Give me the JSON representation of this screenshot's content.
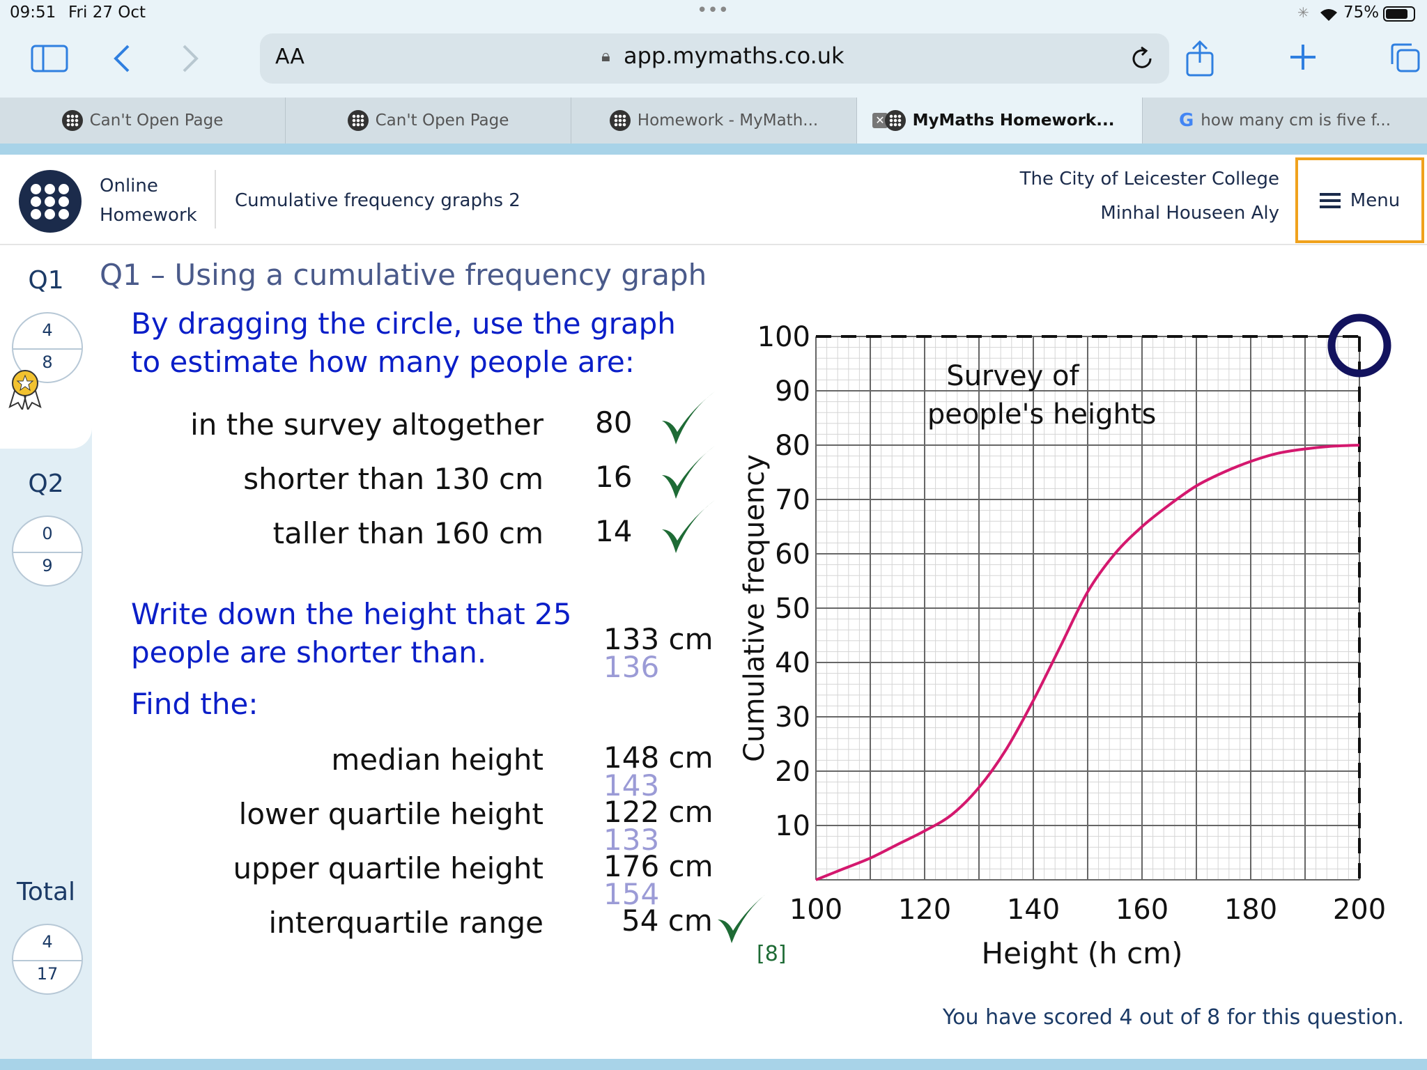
{
  "status": {
    "time": "09:51",
    "date": "Fri 27 Oct",
    "battery": "75%"
  },
  "browser": {
    "url": "app.mymaths.co.uk",
    "text_size": "AA",
    "tabs": [
      {
        "label": "Can't Open Page",
        "active": false
      },
      {
        "label": "Can't Open Page",
        "active": false
      },
      {
        "label": "Homework - MyMath...",
        "active": false
      },
      {
        "label": "MyMaths Homework...",
        "active": true
      },
      {
        "label": "how many cm is five f...",
        "active": false
      }
    ]
  },
  "header": {
    "brand_line1": "Online",
    "brand_line2": "Homework",
    "topic": "Cumulative frequency graphs 2",
    "school": "The City of Leicester College",
    "student": "Minhal Houseen Aly",
    "menu_label": "Menu"
  },
  "sidebar": {
    "q1": {
      "label": "Q1",
      "score": "4",
      "total": "8"
    },
    "q2": {
      "label": "Q2",
      "score": "0",
      "total": "9"
    },
    "total": {
      "label": "Total",
      "score": "4",
      "total": "17"
    }
  },
  "question": {
    "title": "Q1 – Using a cumulative frequency graph",
    "instruction_line1": "By dragging the circle, use the graph",
    "instruction_line2": "to estimate how many people are:",
    "items": [
      {
        "label": "in the survey altogether",
        "answer": "80",
        "correct": true
      },
      {
        "label": "shorter than 130 cm",
        "answer": "16",
        "correct": true
      },
      {
        "label": "taller than 160 cm",
        "answer": "14",
        "correct": true
      }
    ],
    "write_line1": "Write down the height that 25",
    "write_line2": "people are shorter than.",
    "write_answer": "133 cm",
    "write_correct": "136",
    "find_label": "Find the:",
    "find_items": [
      {
        "label": "median height",
        "answer": "148 cm",
        "correct_value": "143"
      },
      {
        "label": "lower quartile height",
        "answer": "122 cm",
        "correct_value": "133"
      },
      {
        "label": "upper quartile height",
        "answer": "176 cm",
        "correct_value": "154"
      },
      {
        "label": "interquartile range",
        "answer": "54 cm",
        "correct_value": ""
      }
    ],
    "marks": "[8]",
    "score_message": "You have scored 4 out of 8 for this question."
  },
  "colors": {
    "curve": "#d4186e",
    "tick": "#1e6b35",
    "handle": "#13135e",
    "menu_border": "#f0a21d",
    "blue_text": "#0a1ec8",
    "correction": "#9b9bd6"
  },
  "chart_data": {
    "type": "line",
    "title": "Survey of people's heights",
    "xlabel": "Height (h cm)",
    "ylabel": "Cumulative frequency",
    "xlim": [
      100,
      200
    ],
    "ylim": [
      0,
      100
    ],
    "x_ticks": [
      "100",
      "120",
      "140",
      "160",
      "180",
      "200"
    ],
    "y_ticks": [
      "10",
      "20",
      "30",
      "40",
      "50",
      "60",
      "70",
      "80",
      "90",
      "100"
    ],
    "grid": true,
    "series": [
      {
        "x": [
          100,
          105,
          110,
          115,
          120,
          125,
          130,
          135,
          140,
          145,
          150,
          155,
          160,
          165,
          170,
          175,
          180,
          185,
          190,
          195,
          200
        ],
        "y": [
          0,
          2,
          4,
          6.5,
          9,
          12,
          17,
          24,
          33,
          43,
          53,
          60,
          65,
          69,
          72.5,
          75,
          77,
          78.5,
          79.3,
          79.8,
          80
        ]
      }
    ],
    "guide_value": {
      "x": 200,
      "y": 100
    }
  }
}
